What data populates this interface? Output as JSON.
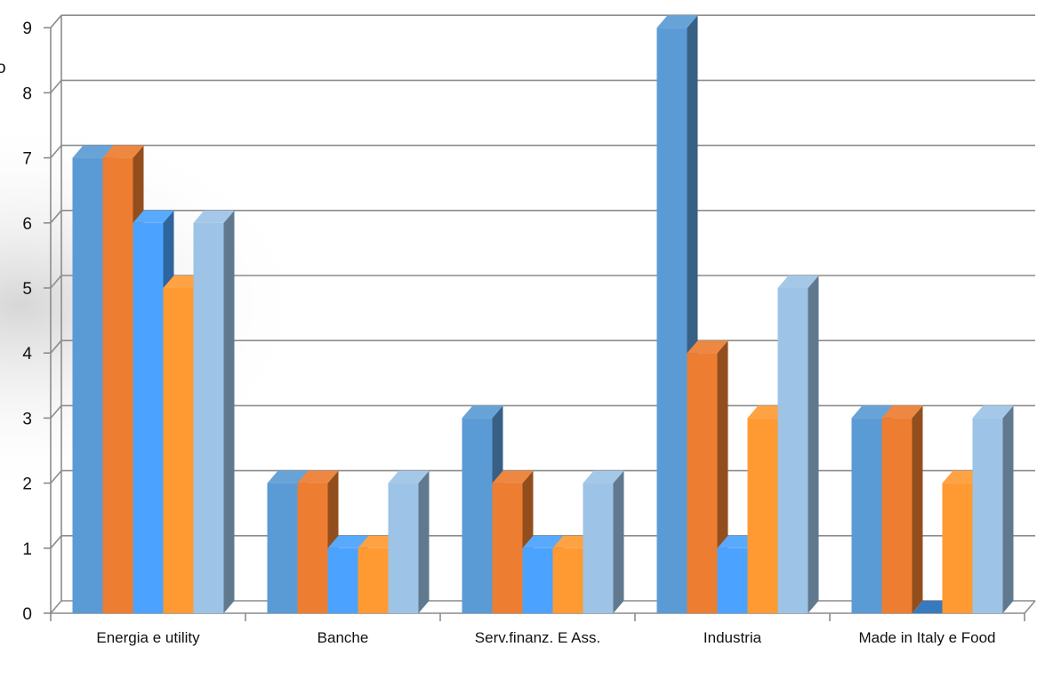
{
  "chart_data": {
    "type": "bar",
    "style": "3d-clustered-column",
    "categories": [
      "Energia e utility",
      "Banche",
      "Serv.finanz. E Ass.",
      "Industria",
      "Made in Italy e Food"
    ],
    "series": [
      {
        "values": [
          7,
          2,
          3,
          9,
          3
        ],
        "color": "#5B9BD5"
      },
      {
        "values": [
          7,
          2,
          2,
          4,
          3
        ],
        "color": "#ED7D31"
      },
      {
        "values": [
          6,
          1,
          1,
          1,
          0
        ],
        "color": "#4BA3FF"
      },
      {
        "values": [
          5,
          1,
          1,
          3,
          2
        ],
        "color": "#FF9A33"
      },
      {
        "values": [
          6,
          2,
          2,
          5,
          3
        ],
        "color": "#9DC3E6"
      }
    ],
    "yticks": [
      "0",
      "1",
      "2",
      "3",
      "4",
      "5",
      "6",
      "7",
      "8",
      "9"
    ],
    "ylim": [
      0,
      9
    ],
    "grid": true,
    "legend": "none"
  },
  "page": {
    "background": "#ffffff",
    "left_shade": "#d9d9d9",
    "clipped_fragment": "o"
  }
}
